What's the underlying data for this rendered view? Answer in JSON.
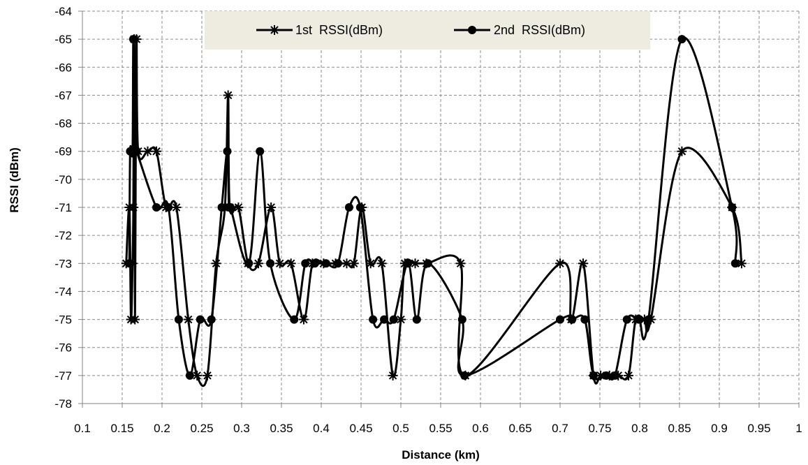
{
  "chart_data": {
    "type": "line",
    "title": "",
    "xlabel": "Distance (km)",
    "ylabel": "RSSI (dBm)",
    "xlim": [
      0.1,
      1.0
    ],
    "ylim": [
      -78,
      -64
    ],
    "x_ticks": [
      "0.1",
      "0.15",
      "0.2",
      "0.25",
      "0.3",
      "0.35",
      "0.4",
      "0.45",
      "0.5",
      "0.55",
      "0.6",
      "0.65",
      "0.7",
      "0.75",
      "0.8",
      "0.85",
      "0.9",
      "0.95",
      "1"
    ],
    "y_ticks": [
      "-64",
      "-65",
      "-66",
      "-67",
      "-68",
      "-69",
      "-70",
      "-71",
      "-72",
      "-73",
      "-74",
      "-75",
      "-76",
      "-77",
      "-78"
    ],
    "grid": true,
    "legend_position": "top",
    "series": [
      {
        "name": "1st  RSSI(dBm)",
        "marker": "star",
        "color": "#000000",
        "points": [
          [
            0.155,
            -73
          ],
          [
            0.159,
            -71
          ],
          [
            0.161,
            -75
          ],
          [
            0.163,
            -73
          ],
          [
            0.164,
            -71
          ],
          [
            0.165,
            -65
          ],
          [
            0.166,
            -75
          ],
          [
            0.167,
            -69
          ],
          [
            0.168,
            -65
          ],
          [
            0.17,
            -69
          ],
          [
            0.182,
            -69
          ],
          [
            0.193,
            -69
          ],
          [
            0.205,
            -71
          ],
          [
            0.218,
            -71
          ],
          [
            0.233,
            -75
          ],
          [
            0.244,
            -77
          ],
          [
            0.257,
            -77
          ],
          [
            0.268,
            -73
          ],
          [
            0.279,
            -71
          ],
          [
            0.283,
            -67
          ],
          [
            0.285,
            -71
          ],
          [
            0.296,
            -71
          ],
          [
            0.308,
            -73
          ],
          [
            0.321,
            -73
          ],
          [
            0.337,
            -71
          ],
          [
            0.348,
            -73
          ],
          [
            0.362,
            -73
          ],
          [
            0.378,
            -75
          ],
          [
            0.389,
            -73
          ],
          [
            0.403,
            -73
          ],
          [
            0.418,
            -73
          ],
          [
            0.432,
            -73
          ],
          [
            0.441,
            -73
          ],
          [
            0.451,
            -71
          ],
          [
            0.462,
            -73
          ],
          [
            0.476,
            -73
          ],
          [
            0.49,
            -77
          ],
          [
            0.5,
            -75
          ],
          [
            0.505,
            -73
          ],
          [
            0.518,
            -73
          ],
          [
            0.532,
            -73
          ],
          [
            0.575,
            -73
          ],
          [
            0.581,
            -77
          ],
          [
            0.7,
            -73
          ],
          [
            0.714,
            -75
          ],
          [
            0.729,
            -73
          ],
          [
            0.742,
            -77
          ],
          [
            0.751,
            -77
          ],
          [
            0.762,
            -77
          ],
          [
            0.773,
            -77
          ],
          [
            0.786,
            -77
          ],
          [
            0.795,
            -75
          ],
          [
            0.806,
            -75
          ],
          [
            0.814,
            -75
          ],
          [
            0.853,
            -69
          ],
          [
            0.916,
            -71
          ],
          [
            0.928,
            -73
          ]
        ]
      },
      {
        "name": "2nd  RSSI(dBm)",
        "marker": "circle",
        "color": "#000000",
        "points": [
          [
            0.159,
            -73
          ],
          [
            0.16,
            -69
          ],
          [
            0.163,
            -69
          ],
          [
            0.164,
            -65
          ],
          [
            0.166,
            -69
          ],
          [
            0.168,
            -69
          ],
          [
            0.193,
            -71
          ],
          [
            0.208,
            -71
          ],
          [
            0.221,
            -75
          ],
          [
            0.235,
            -77
          ],
          [
            0.248,
            -75
          ],
          [
            0.262,
            -75
          ],
          [
            0.275,
            -71
          ],
          [
            0.282,
            -69
          ],
          [
            0.284,
            -71
          ],
          [
            0.286,
            -71
          ],
          [
            0.309,
            -73
          ],
          [
            0.323,
            -69
          ],
          [
            0.336,
            -73
          ],
          [
            0.366,
            -75
          ],
          [
            0.38,
            -73
          ],
          [
            0.392,
            -73
          ],
          [
            0.406,
            -73
          ],
          [
            0.421,
            -73
          ],
          [
            0.435,
            -71
          ],
          [
            0.449,
            -71
          ],
          [
            0.465,
            -75
          ],
          [
            0.479,
            -75
          ],
          [
            0.491,
            -75
          ],
          [
            0.509,
            -73
          ],
          [
            0.52,
            -75
          ],
          [
            0.534,
            -73
          ],
          [
            0.577,
            -75
          ],
          [
            0.58,
            -77
          ],
          [
            0.7,
            -75
          ],
          [
            0.715,
            -75
          ],
          [
            0.731,
            -75
          ],
          [
            0.742,
            -77
          ],
          [
            0.758,
            -77
          ],
          [
            0.769,
            -77
          ],
          [
            0.784,
            -75
          ],
          [
            0.799,
            -75
          ],
          [
            0.811,
            -75
          ],
          [
            0.853,
            -65
          ],
          [
            0.916,
            -71
          ],
          [
            0.92,
            -73
          ]
        ]
      }
    ]
  }
}
